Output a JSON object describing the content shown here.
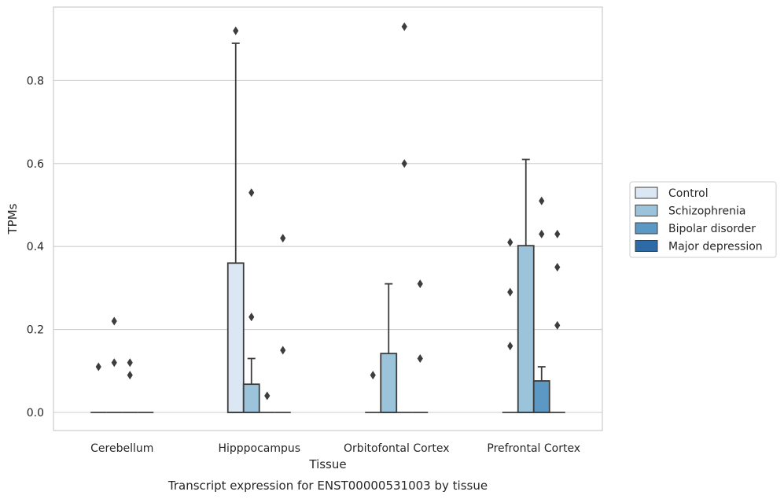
{
  "chart_data": {
    "type": "box",
    "xlabel": "Tissue",
    "ylabel": "TPMs",
    "caption": "Transcript expression for ENST00000531003 by tissue",
    "ylim": [
      -0.045,
      0.98
    ],
    "yticks": [
      "0.0",
      "0.2",
      "0.4",
      "0.6",
      "0.8"
    ],
    "grid": "horizontal",
    "legend_position": "right",
    "categories": [
      "Cerebellum",
      "Hipppocampus",
      "Orbitofontal Cortex",
      "Prefrontal Cortex"
    ],
    "series": [
      {
        "name": "Control",
        "color": "#dbe7f3",
        "boxes": [
          {
            "q1": 0,
            "median": 0,
            "q3": 0,
            "whisker_low": 0,
            "whisker_high": 0,
            "outliers": [
              0.11
            ]
          },
          {
            "q1": 0,
            "median": 0,
            "q3": 0.36,
            "whisker_low": 0,
            "whisker_high": 0.89,
            "outliers": [
              0.92
            ]
          },
          {
            "q1": 0,
            "median": 0,
            "q3": 0,
            "whisker_low": 0,
            "whisker_high": 0,
            "outliers": [
              0.09
            ]
          },
          {
            "q1": 0,
            "median": 0,
            "q3": 0,
            "whisker_low": 0,
            "whisker_high": 0,
            "outliers": [
              0.41,
              0.29,
              0.16
            ]
          }
        ]
      },
      {
        "name": "Schizophrenia",
        "color": "#9bc3da",
        "boxes": [
          {
            "q1": 0,
            "median": 0,
            "q3": 0,
            "whisker_low": 0,
            "whisker_high": 0,
            "outliers": [
              0.22,
              0.12
            ]
          },
          {
            "q1": 0,
            "median": 0,
            "q3": 0.068,
            "whisker_low": 0,
            "whisker_high": 0.13,
            "outliers": [
              0.53,
              0.23
            ]
          },
          {
            "q1": 0,
            "median": 0,
            "q3": 0.142,
            "whisker_low": 0,
            "whisker_high": 0.31,
            "outliers": []
          },
          {
            "q1": 0,
            "median": 0,
            "q3": 0.402,
            "whisker_low": 0,
            "whisker_high": 0.61,
            "outliers": []
          }
        ]
      },
      {
        "name": "Bipolar disorder",
        "color": "#5b99c4",
        "boxes": [
          {
            "q1": 0,
            "median": 0,
            "q3": 0,
            "whisker_low": 0,
            "whisker_high": 0,
            "outliers": [
              0.12,
              0.09
            ]
          },
          {
            "q1": 0,
            "median": 0,
            "q3": 0,
            "whisker_low": 0,
            "whisker_high": 0,
            "outliers": [
              0.04
            ]
          },
          {
            "q1": 0,
            "median": 0,
            "q3": 0,
            "whisker_low": 0,
            "whisker_high": 0,
            "outliers": [
              0.6,
              0.93
            ]
          },
          {
            "q1": 0,
            "median": 0,
            "q3": 0.076,
            "whisker_low": 0,
            "whisker_high": 0.11,
            "outliers": [
              0.51,
              0.43
            ]
          }
        ]
      },
      {
        "name": "Major depression",
        "color": "#2e6aa5",
        "boxes": [
          {
            "q1": 0,
            "median": 0,
            "q3": 0,
            "whisker_low": 0,
            "whisker_high": 0,
            "outliers": []
          },
          {
            "q1": 0,
            "median": 0,
            "q3": 0,
            "whisker_low": 0,
            "whisker_high": 0,
            "outliers": [
              0.42,
              0.15
            ]
          },
          {
            "q1": 0,
            "median": 0,
            "q3": 0,
            "whisker_low": 0,
            "whisker_high": 0,
            "outliers": [
              0.31,
              0.13
            ]
          },
          {
            "q1": 0,
            "median": 0,
            "q3": 0,
            "whisker_low": 0,
            "whisker_high": 0,
            "outliers": [
              0.43,
              0.35,
              0.21
            ]
          }
        ]
      }
    ]
  }
}
